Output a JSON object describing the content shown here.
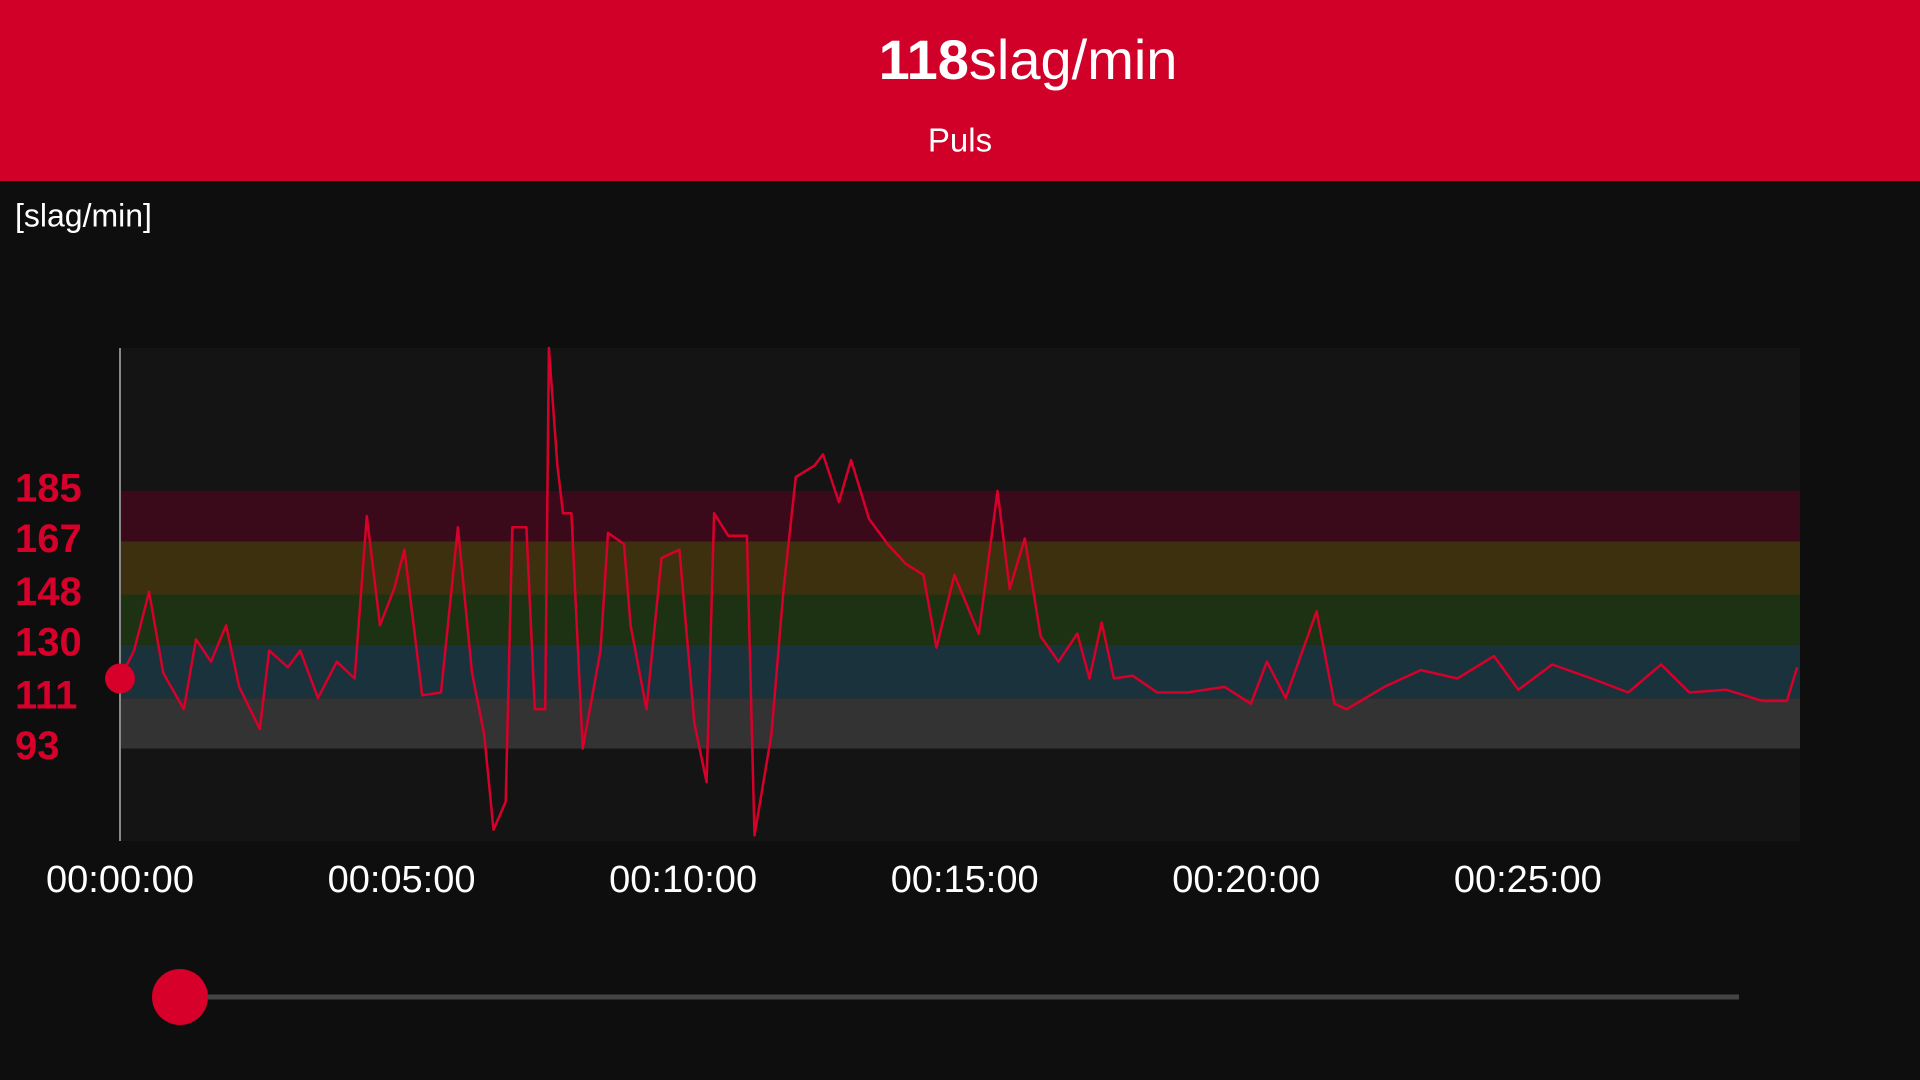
{
  "header": {
    "value": "118",
    "unit": "slag/min",
    "label": "Puls"
  },
  "chart_data": {
    "type": "line",
    "y_label": "[slag/min]",
    "x": [
      0,
      15,
      31,
      46,
      68,
      81,
      97,
      113,
      127,
      149,
      159,
      179,
      192,
      211,
      231,
      250,
      263,
      277,
      292,
      303,
      322,
      342,
      360,
      375,
      388,
      398,
      411,
      418,
      433,
      442,
      453,
      457,
      466,
      472,
      481,
      493,
      512,
      520,
      537,
      544,
      561,
      577,
      596,
      612,
      625,
      633,
      648,
      668,
      676,
      694,
      707,
      720,
      740,
      749,
      766,
      779,
      798,
      818,
      837,
      856,
      870,
      889,
      915,
      935,
      948,
      964,
      981,
      1000,
      1020,
      1033,
      1046,
      1059,
      1079,
      1105,
      1137,
      1177,
      1205,
      1222,
      1242,
      1275,
      1294,
      1307,
      1347,
      1386,
      1425,
      1464,
      1490,
      1526,
      1568,
      1607,
      1642,
      1672,
      1711,
      1750,
      1776,
      1787
    ],
    "series": [
      {
        "name": "Puls",
        "color": "#d6002a",
        "values": [
          118,
          128,
          149,
          120,
          107,
          132,
          124,
          137,
          115,
          100,
          128,
          122,
          128,
          111,
          124,
          118,
          176,
          137,
          150,
          164,
          112,
          113,
          172,
          120,
          98,
          64,
          74,
          172,
          172,
          107,
          107,
          236,
          194,
          177,
          177,
          93,
          128,
          170,
          166,
          137,
          107,
          161,
          164,
          102,
          81,
          177,
          169,
          169,
          62,
          98,
          150,
          190,
          194,
          198,
          181,
          196,
          175,
          166,
          159,
          155,
          129,
          155,
          134,
          185,
          150,
          168,
          133,
          124,
          134,
          118,
          138,
          118,
          119,
          113,
          113,
          115,
          109,
          124,
          111,
          142,
          109,
          107,
          115,
          121,
          118,
          126,
          114,
          123,
          118,
          113,
          123,
          113,
          114,
          110,
          110,
          122
        ]
      }
    ],
    "xlim": [
      0,
      1790
    ],
    "xticks": [
      {
        "value": 0,
        "label": "00:00:00"
      },
      {
        "value": 300,
        "label": "00:05:00"
      },
      {
        "value": 600,
        "label": "00:10:00"
      },
      {
        "value": 900,
        "label": "00:15:00"
      },
      {
        "value": 1200,
        "label": "00:20:00"
      },
      {
        "value": 1500,
        "label": "00:25:00"
      }
    ],
    "ylim": [
      60,
      236
    ],
    "yticks": [
      93,
      111,
      130,
      148,
      167,
      185
    ],
    "zone_colors": [
      "#333333",
      "#19323c",
      "#1d3212",
      "#3d300e",
      "#3a0a1a"
    ]
  }
}
